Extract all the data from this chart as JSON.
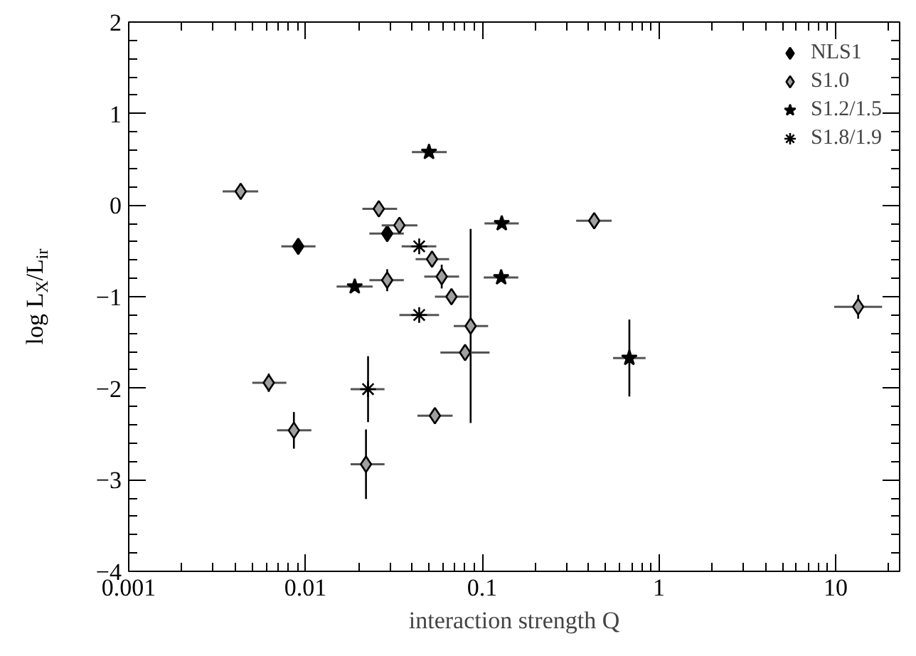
{
  "chart_data": {
    "type": "scatter",
    "xlabel": "interaction strength Q",
    "ylabel": "log L$_{X}$/L$_{ir}$",
    "log": "x",
    "xlim": [
      0.001,
      23
    ],
    "xticks": [
      0.001,
      0.01,
      0.1,
      1,
      10
    ],
    "ylim": [
      -4,
      2
    ],
    "yticks": [
      -4,
      -3,
      -2,
      -1,
      0,
      1,
      2
    ],
    "grid": false,
    "legend": "top right",
    "series": [
      {
        "name": "NLS1",
        "color": "#000000",
        "marker": "diamond",
        "x": [
          0.0091,
          0.029
        ],
        "values": [
          -0.45,
          -0.31
        ],
        "xerrors": [
          [
            0.0073,
            0.0114
          ],
          [
            0.023,
            0.036
          ]
        ],
        "errors": [
          null,
          null
        ]
      },
      {
        "name": "S1.0",
        "color": "#a0a0a0",
        "marker": "diamond",
        "x": [
          0.0043,
          0.026,
          0.034,
          0.052,
          0.059,
          0.029,
          0.067,
          0.086,
          0.08,
          0.0062,
          0.054,
          0.0086,
          0.022,
          0.43,
          13.4
        ],
        "values": [
          0.15,
          -0.04,
          -0.22,
          -0.59,
          -0.78,
          -0.82,
          -1.0,
          -1.32,
          -1.61,
          -1.94,
          -2.3,
          -2.46,
          -2.83,
          -0.17,
          -1.11
        ],
        "xerrors": [
          [
            0.0034,
            0.0054
          ],
          [
            0.021,
            0.033
          ],
          [
            0.027,
            0.043
          ],
          [
            0.042,
            0.065
          ],
          [
            0.047,
            0.074
          ],
          [
            0.023,
            0.036
          ],
          [
            0.054,
            0.084
          ],
          [
            0.069,
            0.108
          ],
          [
            0.058,
            0.11
          ],
          [
            0.005,
            0.0078
          ],
          [
            0.043,
            0.068
          ],
          [
            0.0069,
            0.0108
          ],
          [
            0.018,
            0.028
          ],
          [
            0.34,
            0.54
          ],
          [
            9.8,
            18.3
          ]
        ],
        "errors": [
          null,
          null,
          null,
          null,
          0.13,
          0.12,
          null,
          1.06,
          null,
          0.1,
          null,
          0.2,
          0.38,
          null,
          0.13
        ]
      },
      {
        "name": "S1.2/1.5",
        "color": "#000000",
        "marker": "star",
        "x": [
          0.05,
          0.019,
          0.129,
          0.128,
          0.68
        ],
        "values": [
          0.58,
          -0.89,
          -0.2,
          -0.79,
          -1.67
        ],
        "xerrors": [
          [
            0.04,
            0.063
          ],
          [
            0.015,
            0.024
          ],
          [
            0.103,
            0.161
          ],
          [
            0.102,
            0.16
          ],
          [
            0.55,
            0.84
          ]
        ],
        "errors": [
          null,
          null,
          null,
          null,
          0.42
        ]
      },
      {
        "name": "S1.8/1.9",
        "color": "#000000",
        "marker": "cross",
        "x": [
          0.044,
          0.044,
          0.0226
        ],
        "values": [
          -0.45,
          -1.2,
          -2.01
        ],
        "xerrors": [
          [
            0.035,
            0.055
          ],
          [
            0.034,
            0.057
          ],
          [
            0.018,
            0.028
          ]
        ],
        "errors": [
          null,
          null,
          0.36
        ]
      }
    ]
  }
}
